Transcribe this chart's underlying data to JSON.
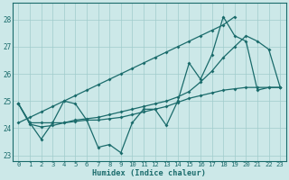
{
  "xlabel": "Humidex (Indice chaleur)",
  "bg_color": "#cce8e8",
  "grid_color": "#a0cccc",
  "line_color": "#1a6b6b",
  "x_values": [
    0,
    1,
    2,
    3,
    4,
    5,
    6,
    7,
    8,
    9,
    10,
    11,
    12,
    13,
    14,
    15,
    16,
    17,
    18,
    19,
    20,
    21,
    22,
    23
  ],
  "ylim": [
    22.8,
    28.6
  ],
  "xlim": [
    -0.5,
    23.5
  ],
  "yticks": [
    23,
    24,
    25,
    26,
    27,
    28
  ],
  "xticks": [
    0,
    1,
    2,
    3,
    4,
    5,
    6,
    7,
    8,
    9,
    10,
    11,
    12,
    13,
    14,
    15,
    16,
    17,
    18,
    19,
    20,
    21,
    22,
    23
  ],
  "y_zigzag": [
    24.9,
    24.2,
    23.6,
    24.2,
    25.0,
    24.9,
    24.3,
    23.3,
    23.4,
    23.1,
    24.2,
    24.7,
    24.7,
    24.1,
    25.0,
    26.4,
    25.8,
    26.7,
    28.1,
    27.4,
    27.2,
    25.4,
    25.5,
    25.5
  ],
  "y_smooth": [
    24.9,
    24.15,
    24.05,
    24.1,
    24.2,
    24.25,
    24.3,
    24.3,
    24.35,
    24.4,
    24.5,
    24.6,
    24.7,
    24.8,
    24.95,
    25.1,
    25.2,
    25.3,
    25.4,
    25.45,
    25.5,
    25.5,
    25.5,
    25.5
  ],
  "y_linear": [
    24.2,
    24.4,
    24.6,
    24.8,
    25.0,
    25.2,
    25.4,
    25.6,
    25.8,
    26.0,
    26.2,
    26.4,
    26.6,
    26.8,
    27.0,
    27.2,
    27.4,
    27.6,
    27.8,
    28.1
  ],
  "x_linear": [
    0,
    1,
    2,
    3,
    4,
    5,
    6,
    7,
    8,
    9,
    10,
    11,
    12,
    13,
    14,
    15,
    16,
    17,
    18,
    19
  ],
  "y_curve": [
    24.9,
    24.2,
    24.2,
    24.2,
    24.2,
    24.3,
    24.35,
    24.4,
    24.5,
    24.6,
    24.7,
    24.8,
    24.9,
    25.0,
    25.15,
    25.35,
    25.7,
    26.1,
    26.6,
    27.0,
    27.4,
    27.2,
    26.9,
    25.5
  ]
}
